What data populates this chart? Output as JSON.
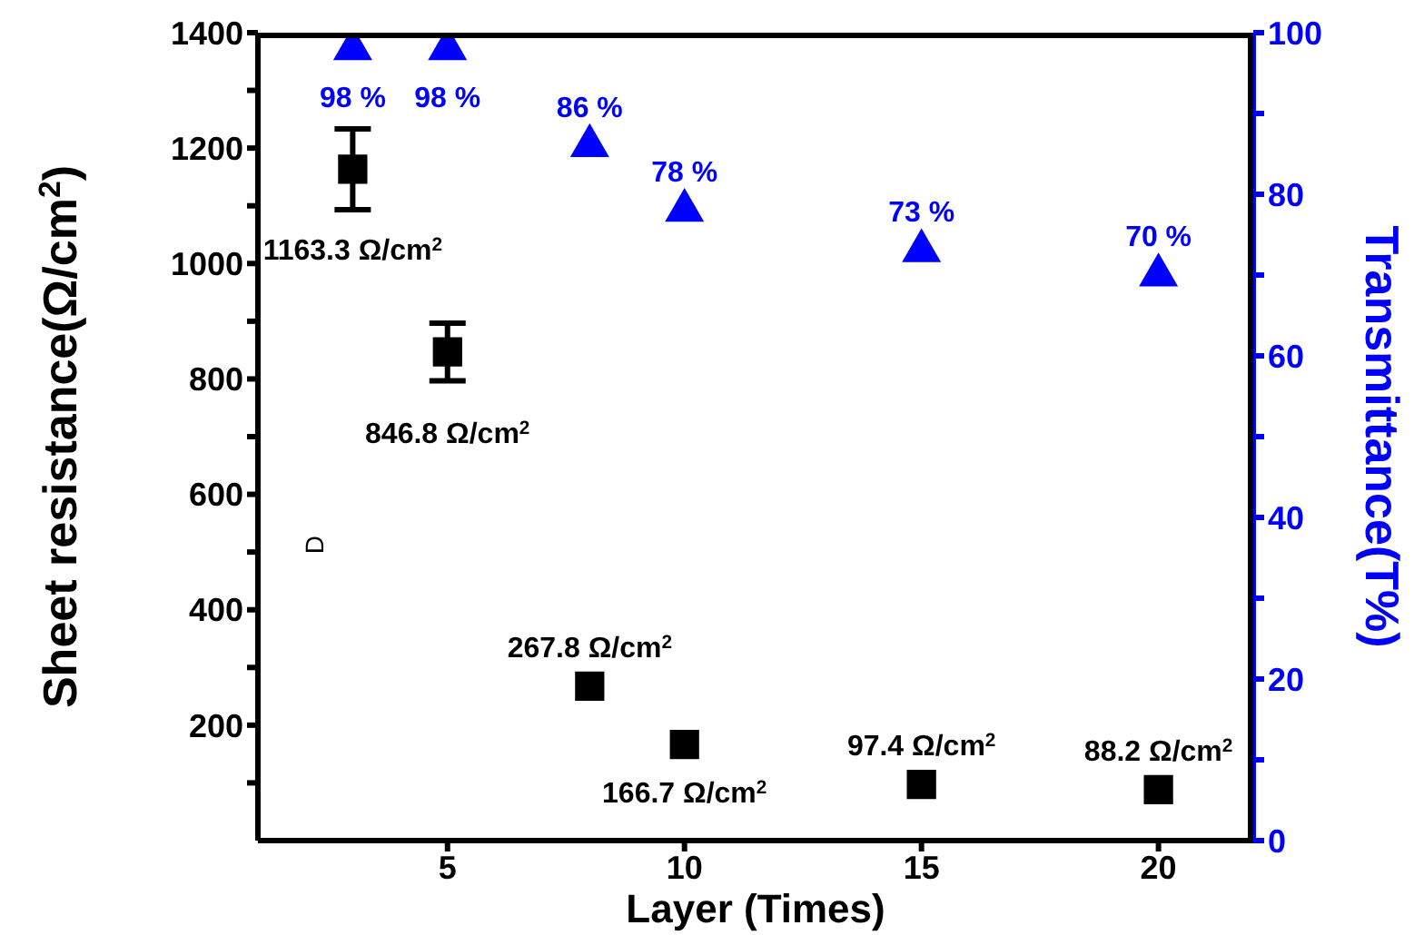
{
  "chart_data": {
    "type": "scatter",
    "xlabel": "Layer (Times)",
    "ylabel": "Sheet resistance(Ω/cm$^{2}$)",
    "y2label": "Transmittance(T%)",
    "x": [
      3,
      5,
      8,
      10,
      15,
      20
    ],
    "xlim": [
      1,
      22
    ],
    "xticks": [
      5,
      10,
      15,
      20
    ],
    "ylim": [
      0,
      1400
    ],
    "yticks": [
      {
        "value": 100,
        "label": null
      },
      200,
      {
        "value": 300,
        "label": null
      },
      400,
      {
        "value": 500,
        "label": null
      },
      600,
      {
        "value": 700,
        "label": null
      },
      800,
      {
        "value": 900,
        "label": null
      },
      1000,
      {
        "value": 1100,
        "label": null
      },
      1200,
      {
        "value": 1300,
        "label": null
      },
      1400
    ],
    "y2lim": [
      0,
      100
    ],
    "y2ticks": [
      0,
      {
        "value": 10,
        "label": null
      },
      20,
      {
        "value": 30,
        "label": null
      },
      40,
      {
        "value": 50,
        "label": null
      },
      60,
      {
        "value": 70,
        "label": null
      },
      80,
      {
        "value": 90,
        "label": null
      },
      100
    ],
    "series": [
      {
        "color": "#000000",
        "marker": "square",
        "values": [
          1163.3,
          846.8,
          267.8,
          166.7,
          97.4,
          88.2
        ],
        "errors": [
          70,
          50,
          null,
          null,
          null,
          null
        ],
        "value_labels": [
          "1163.3 Ω/cm$^{2}$",
          "846.8 Ω/cm$^{2}$",
          "267.8 Ω/cm$^{2}$",
          "166.7 Ω/cm$^{2}$",
          "97.4 Ω/cm$^{2}$",
          "88.2 Ω/cm$^{2}$"
        ]
      },
      {
        "color": "#0000ff",
        "marker": "triangle",
        "axis": "y2",
        "values": [
          98,
          98,
          86,
          78,
          73,
          70
        ],
        "value_labels": [
          "98 %",
          "98 %",
          "86 %",
          "78 %",
          "73 %",
          "70 %"
        ]
      }
    ],
    "annotations": [
      "D"
    ]
  }
}
